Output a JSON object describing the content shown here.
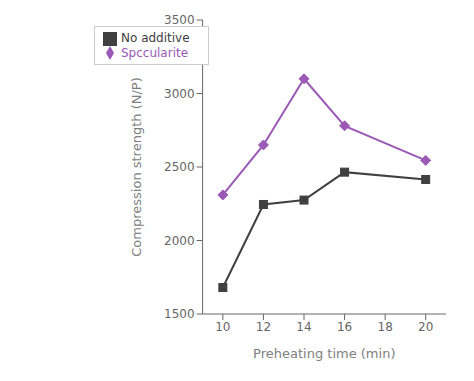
{
  "chart_data": {
    "type": "line",
    "xlabel": "Preheating time (min)",
    "ylabel": "Compression strength (N/P)",
    "x": [
      10,
      12,
      14,
      16,
      20
    ],
    "series": [
      {
        "name": "No additive",
        "color": "#404040",
        "marker": "square",
        "values": [
          1680,
          2245,
          2275,
          2465,
          2415
        ]
      },
      {
        "name": "Spccularite",
        "color": "#9B59B6",
        "marker": "diamond",
        "values": [
          2310,
          2650,
          3100,
          2780,
          2545
        ]
      }
    ],
    "xlim": [
      9,
      21
    ],
    "ylim": [
      1500,
      3500
    ],
    "xticks": [
      10,
      12,
      14,
      16,
      18,
      20
    ],
    "yticks": [
      1500,
      2000,
      2500,
      3000,
      3500
    ],
    "legend": "upper left",
    "grid": false
  }
}
